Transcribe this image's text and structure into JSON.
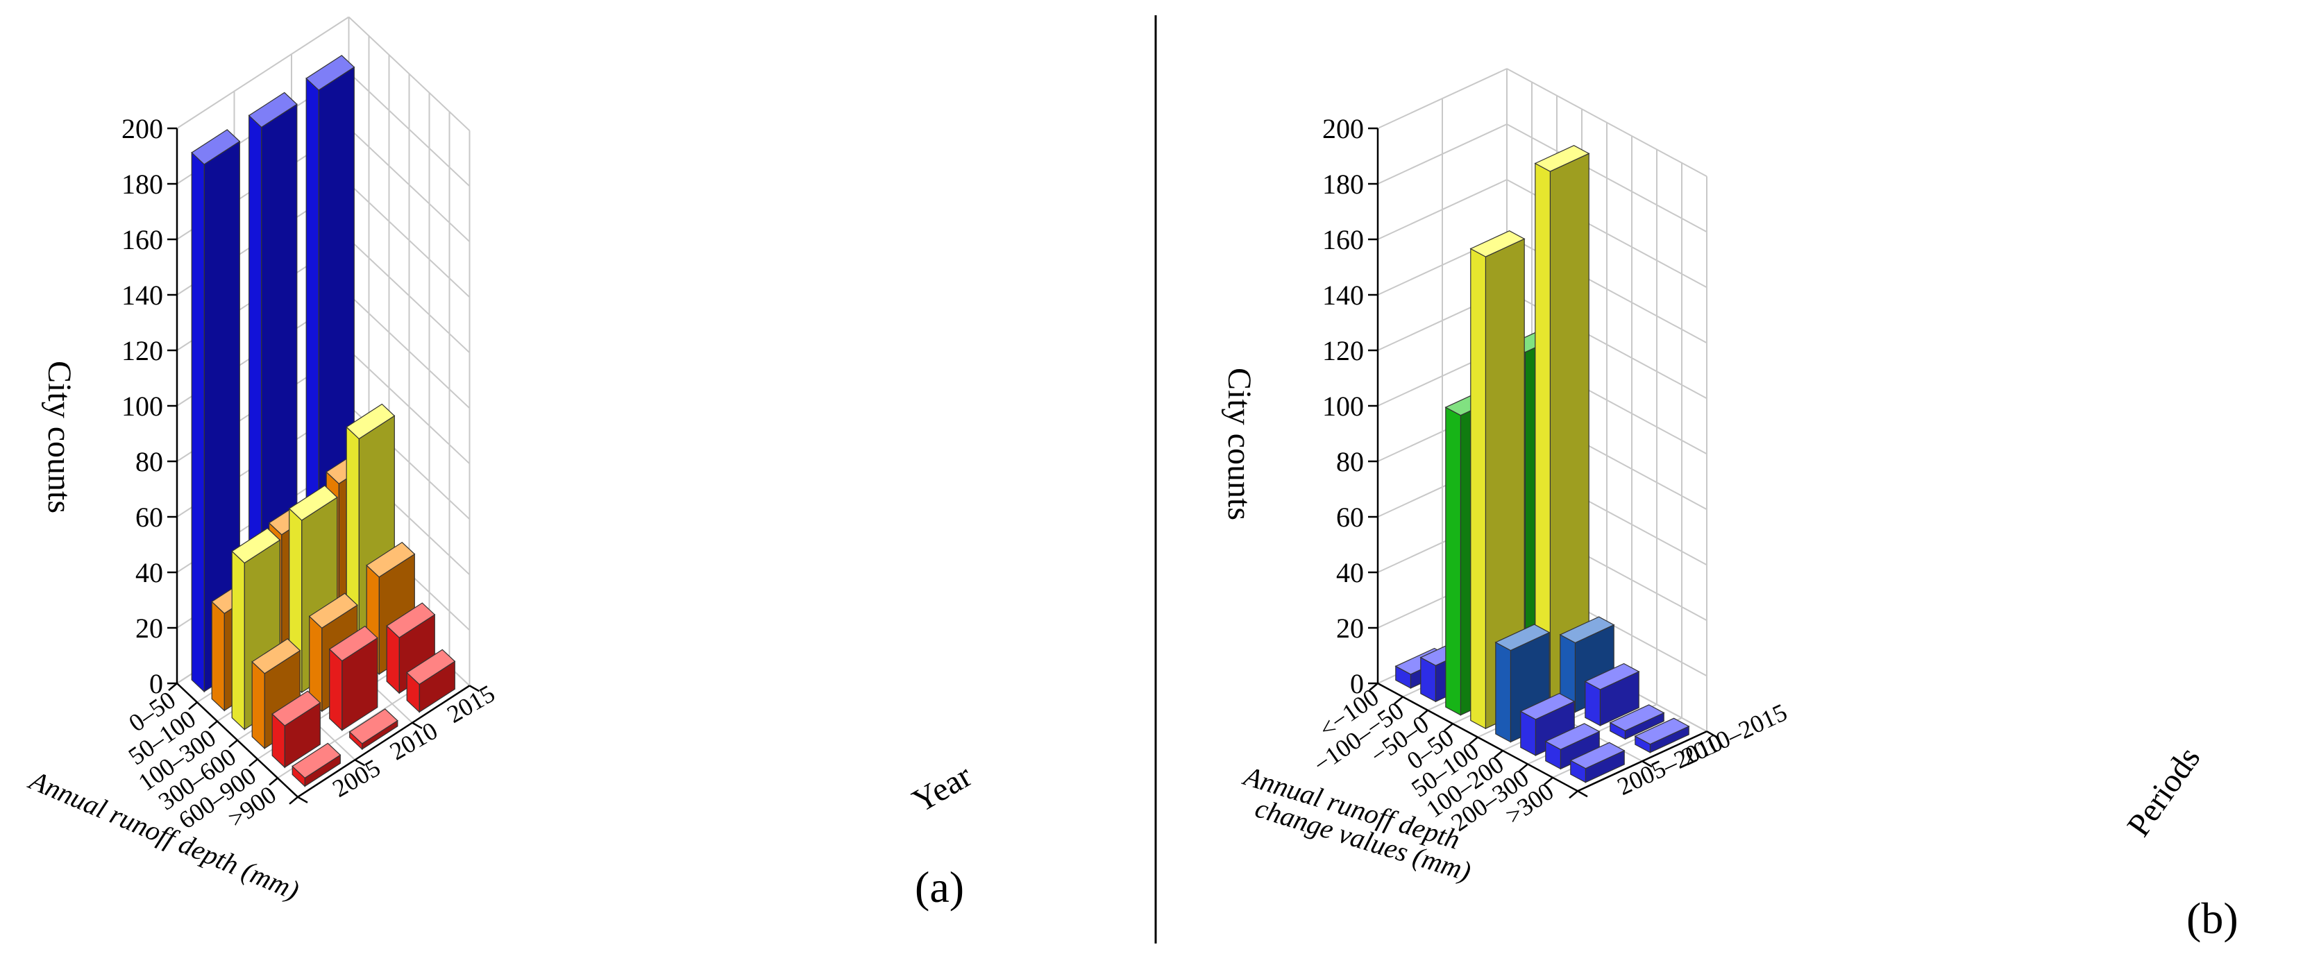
{
  "chart_data": [
    {
      "type": "bar",
      "subtype": "3d-bar",
      "panel_label": "(a)",
      "ylabel": "City counts",
      "xlabel": "Annual runoff depth (mm)",
      "zlabel": "Year",
      "ylim": [
        0,
        200
      ],
      "yticks": [
        "0",
        "20",
        "40",
        "60",
        "80",
        "100",
        "120",
        "140",
        "160",
        "180",
        "200"
      ],
      "categories": [
        "0–50",
        "50–100",
        "100–300",
        "300–600",
        "600–900",
        ">900"
      ],
      "series": [
        {
          "name": "2005",
          "values": [
            190,
            35,
            60,
            27,
            15,
            3
          ]
        },
        {
          "name": "2010",
          "values": [
            190,
            50,
            62,
            30,
            25,
            2
          ]
        },
        {
          "name": "2015",
          "values": [
            190,
            55,
            78,
            35,
            20,
            10
          ]
        }
      ],
      "bar_colors": [
        "#1414f0",
        "#ff8a00",
        "#ffff33",
        "#ff8a00",
        "#ff1e1e",
        "#ff1e1e"
      ],
      "grid": true
    },
    {
      "type": "bar",
      "subtype": "3d-bar",
      "panel_label": "(b)",
      "ylabel": "City counts",
      "xlabel_lines": [
        "Annual runoff depth",
        "change values (mm)"
      ],
      "zlabel": "Periods",
      "ylim": [
        0,
        200
      ],
      "yticks": [
        "0",
        "20",
        "40",
        "60",
        "80",
        "100",
        "120",
        "140",
        "160",
        "180",
        "200"
      ],
      "categories": [
        "<−100",
        "−100–−50",
        "−50–0",
        "0–50",
        "50–100",
        "100–200",
        "200–300",
        ">300"
      ],
      "series": [
        {
          "name": "2005–2010",
          "values": [
            5,
            13,
            108,
            170,
            33,
            13,
            7,
            5
          ]
        },
        {
          "name": "2010–2015",
          "values": [
            5,
            6,
            120,
            190,
            25,
            13,
            3,
            3
          ]
        }
      ],
      "bar_colors": [
        "#3232ff",
        "#3232ff",
        "#19c819",
        "#ffff33",
        "#1e64c8",
        "#3232ff",
        "#3232ff",
        "#3232ff"
      ],
      "grid": true
    }
  ],
  "panel_labels": [
    "(a)",
    "(b)"
  ]
}
